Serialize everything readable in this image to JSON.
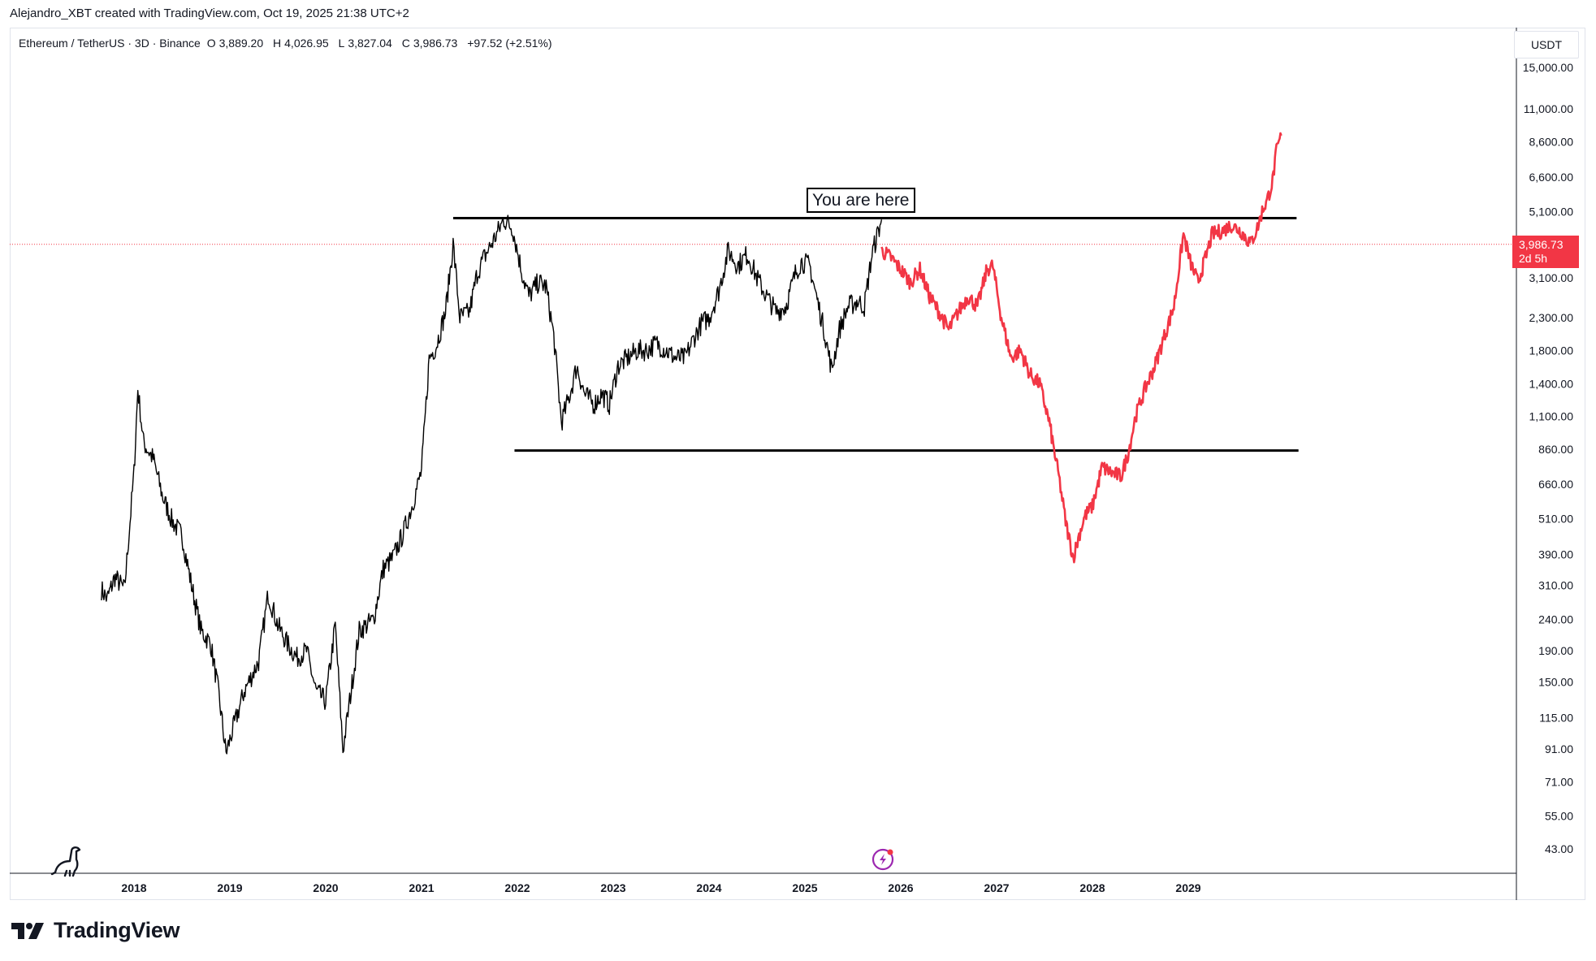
{
  "header": {
    "credit": "Alejandro_XBT created with TradingView.com, Oct 19, 2025 21:38 UTC+2"
  },
  "legend": {
    "symbol": "Ethereum / TetherUS · 3D · Binance",
    "o_label": "O",
    "o_value": "3,889.20",
    "h_label": "H",
    "h_value": "4,026.95",
    "l_label": "L",
    "l_value": "3,827.04",
    "c_label": "C",
    "c_value": "3,986.73",
    "change": "+97.52 (+2.51%)"
  },
  "axis": {
    "currency": "USDT",
    "last_price": "3,986.73",
    "countdown": "2d 5h"
  },
  "annotation": {
    "text": "You are here"
  },
  "brand": {
    "name": "TradingView",
    "logo_icon": "tradingview-logo-icon",
    "watermark_icon": "dinosaur-icon",
    "marker_icon": "lightning-icon"
  },
  "colors": {
    "history": "#000000",
    "projection": "#f23645",
    "last_price_line": "#f23645",
    "lightning": "#9c27b0"
  },
  "chart_data": {
    "type": "line",
    "scale": "log",
    "y_ticks": [
      15000,
      11000,
      8600,
      6600,
      5100,
      3986.73,
      3100,
      2300,
      1800,
      1400,
      1100,
      860,
      660,
      510,
      390,
      310,
      240,
      190,
      150,
      115,
      91,
      71,
      55,
      43
    ],
    "y_tick_labels": [
      "15,000.00",
      "11,000.00",
      "8,600.00",
      "6,600.00",
      "5,100.00",
      "3,986.73",
      "3,100.00",
      "2,300.00",
      "1,800.00",
      "1,400.00",
      "1,100.00",
      "860.00",
      "660.00",
      "510.00",
      "390.00",
      "310.00",
      "240.00",
      "190.00",
      "150.00",
      "115.00",
      "91.00",
      "71.00",
      "55.00",
      "43.00"
    ],
    "x_tick_labels": [
      "2018",
      "2019",
      "2020",
      "2021",
      "2022",
      "2023",
      "2024",
      "2025",
      "2026",
      "2027",
      "2028",
      "2029"
    ],
    "x_tick_years": [
      2018,
      2019,
      2020,
      2021,
      2022,
      2023,
      2024,
      2025,
      2026,
      2027,
      2028,
      2029
    ],
    "history": {
      "t": [
        2017.66,
        2017.72,
        2017.8,
        2017.9,
        2018.0,
        2018.04,
        2018.1,
        2018.2,
        2018.3,
        2018.4,
        2018.5,
        2018.6,
        2018.7,
        2018.8,
        2018.88,
        2018.96,
        2019.05,
        2019.15,
        2019.3,
        2019.4,
        2019.5,
        2019.6,
        2019.7,
        2019.8,
        2019.9,
        2020.0,
        2020.1,
        2020.18,
        2020.25,
        2020.35,
        2020.5,
        2020.6,
        2020.7,
        2020.8,
        2020.9,
        2021.0,
        2021.08,
        2021.15,
        2021.25,
        2021.33,
        2021.4,
        2021.5,
        2021.58,
        2021.65,
        2021.75,
        2021.86,
        2021.95,
        2022.05,
        2022.12,
        2022.22,
        2022.3,
        2022.38,
        2022.46,
        2022.55,
        2022.62,
        2022.7,
        2022.8,
        2022.88,
        2022.96,
        2023.05,
        2023.15,
        2023.25,
        2023.35,
        2023.45,
        2023.55,
        2023.65,
        2023.75,
        2023.85,
        2023.92,
        2024.0,
        2024.1,
        2024.2,
        2024.3,
        2024.4,
        2024.5,
        2024.6,
        2024.7,
        2024.8,
        2024.9,
        2024.96,
        2025.05,
        2025.12,
        2025.2,
        2025.28,
        2025.36,
        2025.45,
        2025.55,
        2025.62,
        2025.7,
        2025.8
      ],
      "v": [
        300,
        280,
        330,
        300,
        720,
        1350,
        900,
        800,
        600,
        500,
        450,
        310,
        220,
        200,
        140,
        88,
        110,
        140,
        175,
        290,
        230,
        200,
        180,
        190,
        140,
        130,
        230,
        90,
        130,
        220,
        240,
        350,
        380,
        450,
        560,
        730,
        1700,
        1850,
        2400,
        4000,
        2300,
        2400,
        3200,
        3600,
        4100,
        4800,
        4500,
        3200,
        2700,
        3000,
        2900,
        2000,
        1050,
        1300,
        1600,
        1300,
        1200,
        1300,
        1200,
        1600,
        1700,
        1800,
        1800,
        1900,
        1800,
        1700,
        1700,
        2000,
        2200,
        2300,
        2800,
        3800,
        3400,
        3700,
        3100,
        2700,
        2400,
        2500,
        3200,
        3500,
        3400,
        2700,
        2100,
        1550,
        2100,
        2500,
        2600,
        2500,
        3700,
        4800
      ]
    },
    "projection": {
      "t": [
        2025.8,
        2025.9,
        2026.0,
        2026.1,
        2026.2,
        2026.3,
        2026.4,
        2026.5,
        2026.6,
        2026.7,
        2026.8,
        2026.9,
        2026.96,
        2027.05,
        2027.15,
        2027.25,
        2027.35,
        2027.45,
        2027.55,
        2027.6,
        2027.65,
        2027.72,
        2027.8,
        2027.86,
        2027.92,
        2028.0,
        2028.1,
        2028.2,
        2028.3,
        2028.38,
        2028.45,
        2028.55,
        2028.65,
        2028.75,
        2028.85,
        2028.95,
        2029.02,
        2029.1,
        2029.18,
        2029.25,
        2029.35,
        2029.45,
        2029.55,
        2029.65,
        2029.72,
        2029.78,
        2029.82,
        2029.88,
        2029.92,
        2029.97
      ],
      "v": [
        3800,
        3600,
        3300,
        3000,
        3300,
        2700,
        2400,
        2100,
        2400,
        2700,
        2500,
        3300,
        3400,
        2300,
        1700,
        1800,
        1500,
        1400,
        1050,
        850,
        700,
        500,
        380,
        450,
        520,
        560,
        750,
        720,
        700,
        850,
        1100,
        1350,
        1600,
        2000,
        2500,
        4300,
        3500,
        3000,
        3600,
        4300,
        4400,
        4600,
        4400,
        4000,
        4500,
        5200,
        5500,
        6400,
        8000,
        9000
      ]
    },
    "levels": [
      {
        "value": 4850,
        "t_start": 2021.33,
        "t_end": 2030.13
      },
      {
        "value": 850,
        "t_start": 2021.97,
        "t_end": 2030.15
      }
    ],
    "last_price": 3986.73
  }
}
